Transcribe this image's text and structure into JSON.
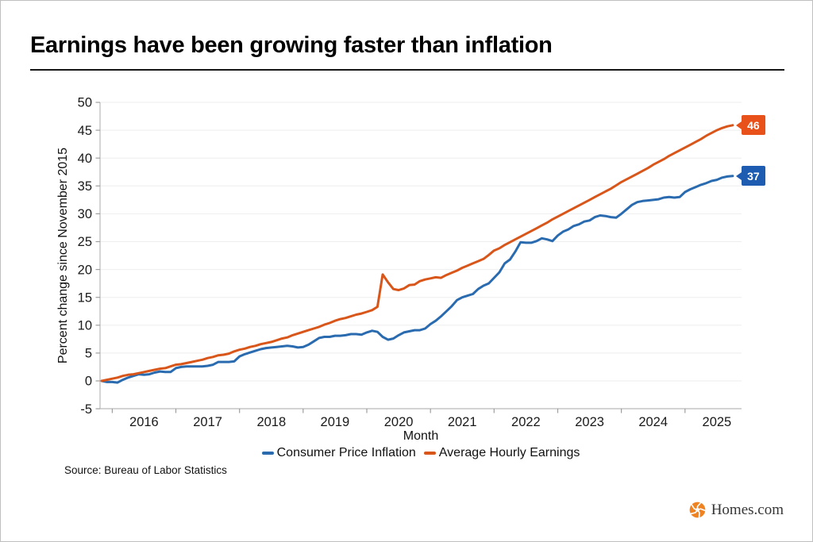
{
  "header": {
    "title": "Earnings have been growing faster than inflation"
  },
  "footer": {
    "source": "Source: Bureau of Labor Statistics",
    "brand": "Homes.com",
    "brand_icon": "pinwheel-icon",
    "brand_icon_color": "#ef8322"
  },
  "chart_data": {
    "type": "line",
    "xlabel": "Month",
    "ylabel": "Percent change since November 2015",
    "x_start_month": "2015-11",
    "x_end_month": "2025-10",
    "x_tick_years": [
      "2016",
      "2017",
      "2018",
      "2019",
      "2020",
      "2021",
      "2022",
      "2023",
      "2024",
      "2025"
    ],
    "yticks": [
      -5,
      0,
      5,
      10,
      15,
      20,
      25,
      30,
      35,
      40,
      45,
      50
    ],
    "ylim": [
      -5,
      50
    ],
    "grid": "horizontal-light",
    "legend_position": "bottom-center",
    "colors": {
      "grid": "#eeeeee",
      "spine": "#b9b9b9",
      "tick": "#9e9e9e",
      "text": "#1a1a1a"
    },
    "series": [
      {
        "name": "Consumer Price Inflation",
        "color": "#2a6bb0",
        "badge_color": "#1d5cb0",
        "end_label": "37",
        "values": [
          0.0,
          -0.2,
          -0.2,
          -0.3,
          0.2,
          0.6,
          0.9,
          1.2,
          1.1,
          1.2,
          1.5,
          1.7,
          1.6,
          1.6,
          2.3,
          2.5,
          2.6,
          2.6,
          2.6,
          2.6,
          2.7,
          2.9,
          3.4,
          3.4,
          3.4,
          3.5,
          4.4,
          4.8,
          5.1,
          5.4,
          5.7,
          5.9,
          6.0,
          6.1,
          6.2,
          6.3,
          6.2,
          6.0,
          6.1,
          6.5,
          7.1,
          7.7,
          7.9,
          7.9,
          8.1,
          8.1,
          8.2,
          8.4,
          8.4,
          8.3,
          8.7,
          9.0,
          8.8,
          7.9,
          7.4,
          7.6,
          8.2,
          8.7,
          8.9,
          9.1,
          9.1,
          9.4,
          10.2,
          10.8,
          11.6,
          12.5,
          13.4,
          14.5,
          15.0,
          15.3,
          15.6,
          16.5,
          17.1,
          17.5,
          18.5,
          19.5,
          21.1,
          21.8,
          23.2,
          24.9,
          24.8,
          24.8,
          25.1,
          25.6,
          25.4,
          25.1,
          26.1,
          26.8,
          27.2,
          27.8,
          28.1,
          28.6,
          28.8,
          29.4,
          29.7,
          29.6,
          29.4,
          29.3,
          30.0,
          30.8,
          31.6,
          32.1,
          32.3,
          32.4,
          32.5,
          32.6,
          32.9,
          33.0,
          32.9,
          33.0,
          33.9,
          34.4,
          34.8,
          35.2,
          35.5,
          35.9,
          36.1,
          36.5,
          36.7,
          36.8
        ]
      },
      {
        "name": "Average Hourly Earnings",
        "color": "#d9561b",
        "badge_color": "#e8511a",
        "end_label": "46",
        "values": [
          0.0,
          0.2,
          0.4,
          0.6,
          0.9,
          1.1,
          1.2,
          1.4,
          1.6,
          1.8,
          2.0,
          2.2,
          2.3,
          2.6,
          2.9,
          3.0,
          3.2,
          3.4,
          3.6,
          3.8,
          4.1,
          4.3,
          4.6,
          4.7,
          4.9,
          5.3,
          5.6,
          5.8,
          6.1,
          6.3,
          6.6,
          6.8,
          7.0,
          7.3,
          7.6,
          7.8,
          8.2,
          8.5,
          8.8,
          9.1,
          9.4,
          9.7,
          10.1,
          10.4,
          10.8,
          11.1,
          11.3,
          11.6,
          11.9,
          12.1,
          12.4,
          12.7,
          13.3,
          19.1,
          17.7,
          16.5,
          16.3,
          16.6,
          17.2,
          17.3,
          17.9,
          18.2,
          18.4,
          18.6,
          18.5,
          19.0,
          19.4,
          19.8,
          20.3,
          20.7,
          21.1,
          21.5,
          21.9,
          22.6,
          23.4,
          23.8,
          24.4,
          24.9,
          25.4,
          25.9,
          26.4,
          26.9,
          27.4,
          27.9,
          28.4,
          29.0,
          29.5,
          30.0,
          30.5,
          31.0,
          31.5,
          32.0,
          32.5,
          33.0,
          33.5,
          34.0,
          34.5,
          35.1,
          35.7,
          36.2,
          36.7,
          37.2,
          37.7,
          38.2,
          38.8,
          39.3,
          39.8,
          40.4,
          40.9,
          41.4,
          41.9,
          42.4,
          42.9,
          43.4,
          44.0,
          44.5,
          45.0,
          45.4,
          45.7,
          45.9
        ]
      }
    ]
  }
}
